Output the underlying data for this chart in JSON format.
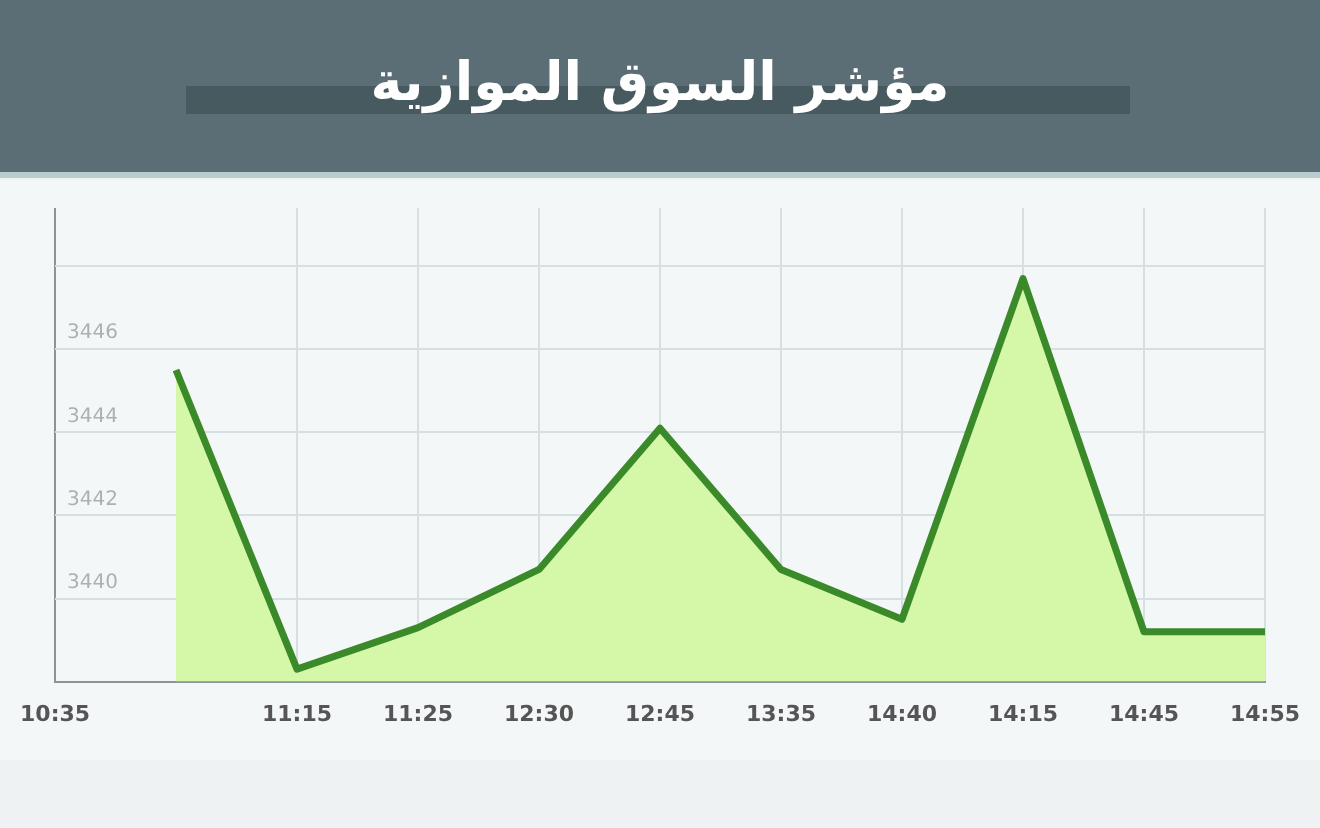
{
  "chart_data": {
    "type": "area",
    "title": "مؤشر السوق الموازية",
    "categories": [
      "10:35",
      null,
      "11:15",
      "11:25",
      "12:30",
      "12:45",
      "13:35",
      "14:40",
      "14:15",
      "14:45",
      "14:55"
    ],
    "series": [
      {
        "color": "#3a8a2a",
        "values": [
          null,
          3445.5,
          3438.3,
          3439.3,
          3440.7,
          3444.1,
          3440.7,
          3439.5,
          3447.7,
          3439.2,
          3439.2
        ]
      }
    ],
    "ylim": [
      3438,
      3449.4
    ],
    "yticks": [
      {
        "value": 3438,
        "label": null
      },
      3440,
      3442,
      3444,
      3446,
      {
        "value": 3448,
        "label": null
      }
    ],
    "grid": true,
    "legend": false,
    "marker": "none",
    "line_style": "solid"
  }
}
